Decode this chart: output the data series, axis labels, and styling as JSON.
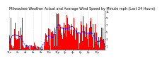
{
  "title": "Milwaukee Weather Actual and Average Wind Speed by Minute mph (Last 24 Hours)",
  "title_fontsize": 3.5,
  "background_color": "#ffffff",
  "bar_color": "#ff0000",
  "line_color": "#0000ff",
  "line_style": "--",
  "line_width": 0.5,
  "ylim": [
    0,
    11
  ],
  "yticks": [
    1,
    3,
    5,
    7,
    9,
    11
  ],
  "num_points": 1440,
  "grid_color": "#bbbbbb",
  "grid_style": ":",
  "bar_alpha": 1.0
}
